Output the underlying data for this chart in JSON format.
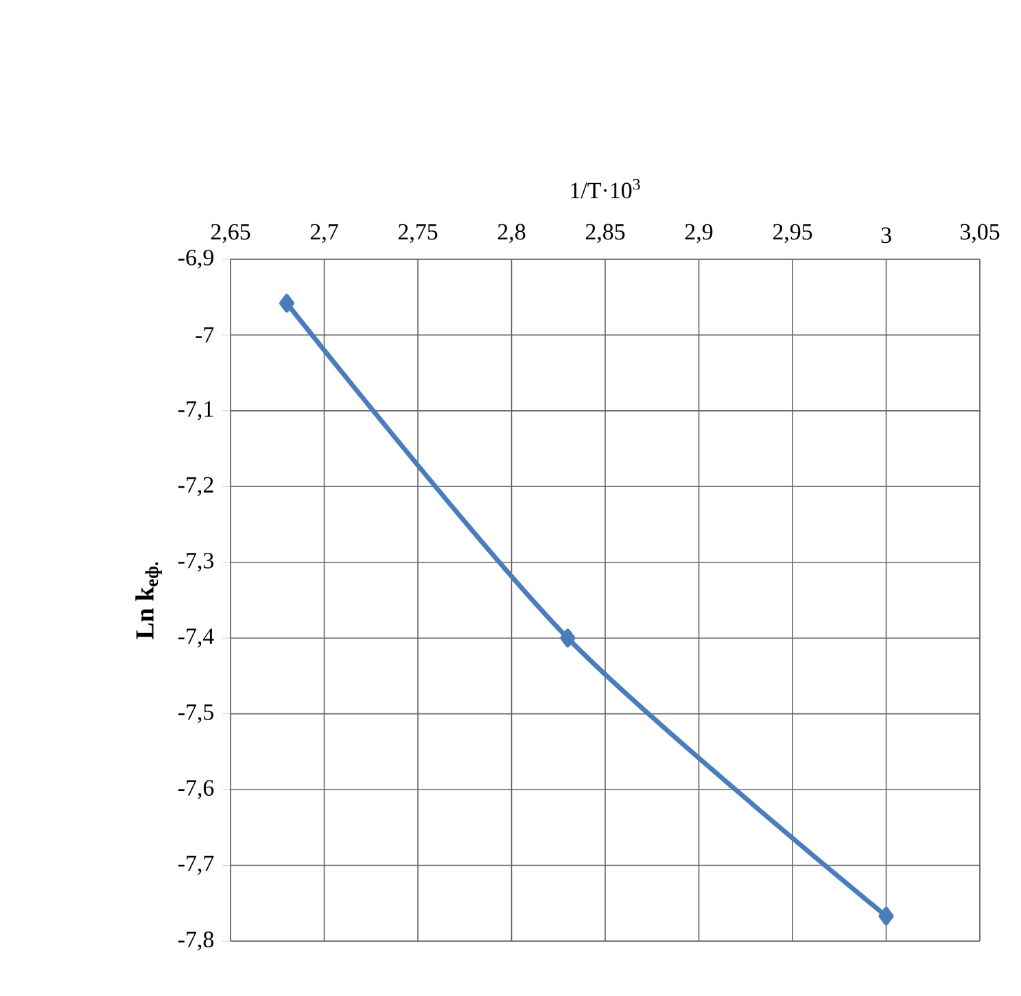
{
  "chart_data": {
    "type": "line",
    "xlabel": "1/T·10$^{3}$",
    "ylabel": "Ln k$_{еф.}$",
    "x": [
      2.68,
      2.83,
      3.0
    ],
    "series": [
      {
        "color": "#4a7ebb",
        "values": [
          -6.958,
          -7.4,
          -7.767
        ]
      }
    ],
    "xlim": [
      2.65,
      3.05
    ],
    "ylim": [
      -7.8,
      -6.9
    ],
    "xticks": [
      {
        "value": 2.65,
        "label": "2,65"
      },
      {
        "value": 2.7,
        "label": "2,7"
      },
      {
        "value": 2.75,
        "label": "2,75"
      },
      {
        "value": 2.8,
        "label": "2,8"
      },
      {
        "value": 2.85,
        "label": "2,85"
      },
      {
        "value": 2.9,
        "label": "2,9"
      },
      {
        "value": 2.95,
        "label": "2,95"
      },
      {
        "value": 3,
        "label": "3"
      },
      {
        "value": 3.05,
        "label": "3,05"
      }
    ],
    "yticks": [
      {
        "value": -7.8,
        "label": "-7,8"
      },
      {
        "value": -7.7,
        "label": "-7,7"
      },
      {
        "value": -7.6,
        "label": "-7,6"
      },
      {
        "value": -7.5,
        "label": "-7,5"
      },
      {
        "value": -7.4,
        "label": "-7,4"
      },
      {
        "value": -7.3,
        "label": "-7,3"
      },
      {
        "value": -7.2,
        "label": "-7,2"
      },
      {
        "value": -7.1,
        "label": "-7,1"
      },
      {
        "value": -7,
        "label": "-7"
      },
      {
        "value": -6.9,
        "label": "-6,9"
      }
    ],
    "grid": true,
    "marker": "diamond",
    "line_style": "solid"
  }
}
